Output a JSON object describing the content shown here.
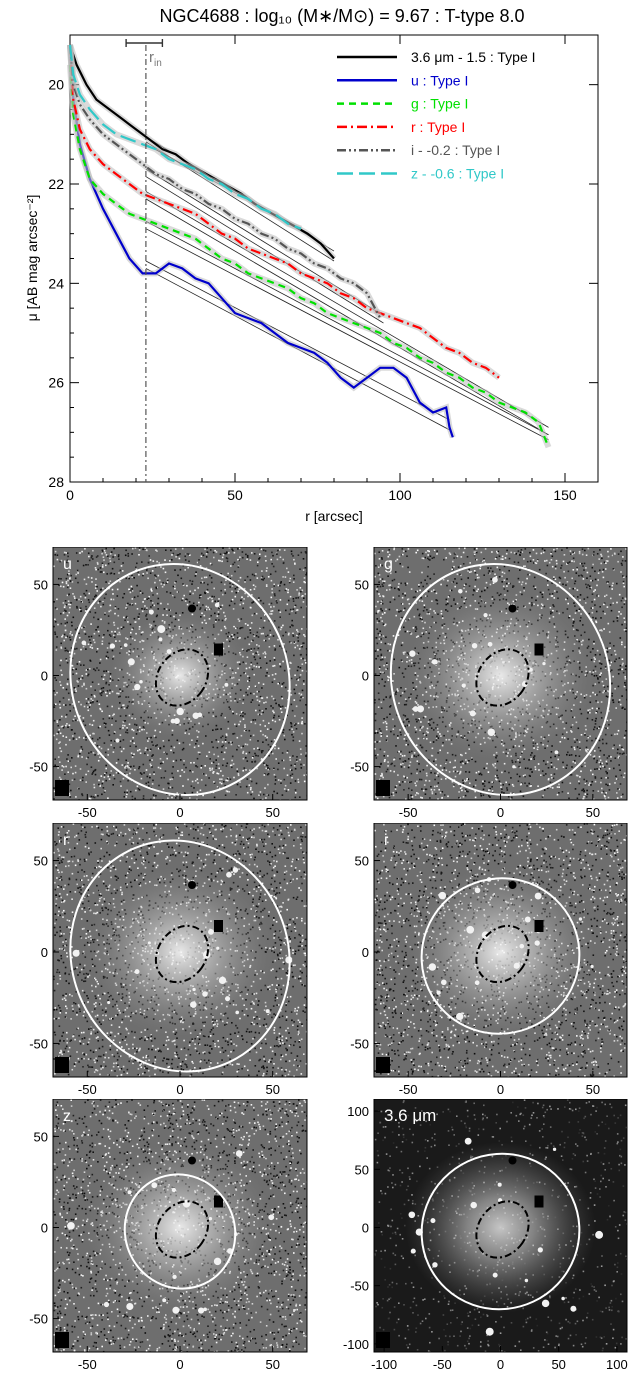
{
  "chart_data": [
    {
      "type": "line",
      "title": "NGC4688 : log₁₀ (M∗/M⊙) = 9.67 : T-type 8.0",
      "xlabel": "r [arcsec]",
      "ylabel": "μ [AB mag arcsec⁻²]",
      "xlim": [
        0,
        160
      ],
      "ylim": [
        28,
        19
      ],
      "y_inverted": true,
      "x_ticks": [
        0,
        50,
        100,
        150
      ],
      "y_ticks": [
        20,
        22,
        24,
        26,
        28
      ],
      "r_in": 23,
      "r_in_label": "r",
      "r_in_sub": "in",
      "r_in_errorbar": [
        17,
        28
      ],
      "legend_position": "top-right",
      "series": [
        {
          "name": "3.6 μm - 1.5 : Type I",
          "color": "#000000",
          "dash": "",
          "x": [
            0,
            2,
            5,
            8,
            12,
            16,
            20,
            24,
            28,
            32,
            36,
            40,
            44,
            48,
            52,
            56,
            60,
            64,
            68,
            72,
            76,
            80
          ],
          "y": [
            19.2,
            19.6,
            20.0,
            20.3,
            20.5,
            20.7,
            20.9,
            21.1,
            21.3,
            21.4,
            21.6,
            21.75,
            21.9,
            22.05,
            22.2,
            22.4,
            22.55,
            22.7,
            22.85,
            23.0,
            23.2,
            23.5
          ],
          "fits": [
            [
              [
                23,
                80
              ],
              [
                21.15,
                23.55
              ]
            ],
            [
              [
                23,
                80
              ],
              [
                21.05,
                23.35
              ]
            ]
          ]
        },
        {
          "name": "u : Type I",
          "color": "#0000cc",
          "dash": "",
          "x": [
            0,
            1,
            3,
            6,
            10,
            14,
            18,
            22,
            26,
            30,
            34,
            38,
            42,
            46,
            50,
            54,
            58,
            62,
            66,
            70,
            74,
            78,
            82,
            86,
            90,
            94,
            98,
            102,
            106,
            110,
            114,
            115,
            116
          ],
          "y": [
            19.2,
            20.3,
            21.2,
            21.9,
            22.5,
            23.0,
            23.5,
            23.8,
            23.8,
            23.6,
            23.7,
            23.9,
            24.0,
            24.3,
            24.6,
            24.7,
            24.8,
            25.0,
            25.2,
            25.3,
            25.4,
            25.6,
            25.9,
            26.1,
            25.9,
            25.7,
            25.7,
            25.9,
            26.4,
            26.6,
            26.5,
            26.9,
            27.1
          ],
          "fits": [
            [
              [
                23,
                115
              ],
              [
                23.55,
                26.75
              ]
            ],
            [
              [
                23,
                115
              ],
              [
                23.7,
                26.95
              ]
            ]
          ]
        },
        {
          "name": "g : Type I",
          "color": "#00e000",
          "dash": "7,5",
          "x": [
            0,
            1,
            3,
            6,
            10,
            14,
            18,
            22,
            26,
            30,
            34,
            38,
            42,
            46,
            50,
            54,
            58,
            62,
            66,
            70,
            74,
            78,
            82,
            86,
            90,
            94,
            98,
            102,
            106,
            110,
            114,
            118,
            122,
            126,
            130,
            134,
            138,
            142,
            145
          ],
          "y": [
            19.6,
            20.6,
            21.3,
            21.9,
            22.2,
            22.4,
            22.6,
            22.7,
            22.8,
            22.9,
            23.0,
            23.1,
            23.3,
            23.5,
            23.6,
            23.8,
            23.9,
            24.0,
            24.1,
            24.3,
            24.4,
            24.6,
            24.7,
            24.8,
            24.9,
            25.0,
            25.2,
            25.3,
            25.5,
            25.6,
            25.8,
            25.9,
            26.1,
            26.2,
            26.4,
            26.5,
            26.6,
            26.8,
            27.3
          ],
          "fits": [
            [
              [
                23,
                145
              ],
              [
                22.75,
                27.05
              ]
            ],
            [
              [
                23,
                145
              ],
              [
                22.9,
                27.15
              ]
            ]
          ]
        },
        {
          "name": "r : Type I",
          "color": "#ff0000",
          "dash": "10,4,2,4",
          "x": [
            0,
            1,
            3,
            6,
            10,
            14,
            18,
            22,
            26,
            30,
            34,
            38,
            42,
            46,
            50,
            54,
            58,
            62,
            66,
            70,
            74,
            78,
            82,
            86,
            90,
            94,
            98,
            102,
            106,
            110,
            114,
            118,
            122,
            126,
            130
          ],
          "y": [
            19.2,
            20.3,
            20.9,
            21.3,
            21.6,
            21.8,
            22.0,
            22.2,
            22.3,
            22.4,
            22.5,
            22.6,
            22.8,
            23.0,
            23.1,
            23.3,
            23.4,
            23.5,
            23.6,
            23.8,
            23.9,
            24.0,
            24.2,
            24.3,
            24.5,
            24.6,
            24.7,
            24.8,
            24.9,
            25.1,
            25.3,
            25.4,
            25.6,
            25.7,
            25.9
          ],
          "fits": [
            [
              [
                23,
                145
              ],
              [
                22.15,
                26.9
              ]
            ],
            [
              [
                23,
                145
              ],
              [
                22.3,
                27.05
              ]
            ]
          ]
        },
        {
          "name": "i - -0.2 : Type I",
          "color": "#555555",
          "dash": "9,3,2,3,2,3",
          "x": [
            0,
            1,
            3,
            6,
            10,
            14,
            18,
            22,
            26,
            30,
            34,
            38,
            42,
            46,
            50,
            54,
            58,
            62,
            66,
            70,
            74,
            78,
            82,
            86,
            90,
            94
          ],
          "y": [
            19.2,
            20.0,
            20.4,
            20.7,
            21.0,
            21.2,
            21.4,
            21.6,
            21.8,
            21.9,
            22.1,
            22.2,
            22.4,
            22.5,
            22.7,
            22.8,
            23.0,
            23.1,
            23.3,
            23.4,
            23.6,
            23.7,
            23.9,
            24.0,
            24.2,
            24.7
          ],
          "fits": [
            [
              [
                23,
                95
              ],
              [
                21.7,
                24.65
              ]
            ],
            [
              [
                23,
                95
              ],
              [
                21.85,
                24.8
              ]
            ]
          ]
        },
        {
          "name": "z - -0.6 : Type I",
          "color": "#30c8c8",
          "dash": "16,6",
          "x": [
            0,
            1,
            3,
            6,
            10,
            14,
            18,
            22,
            26,
            30,
            34,
            38,
            42,
            46,
            50,
            54,
            58,
            62,
            66,
            70
          ],
          "y": [
            19.2,
            19.8,
            20.2,
            20.5,
            20.8,
            21.0,
            21.1,
            21.2,
            21.3,
            21.5,
            21.6,
            21.7,
            21.9,
            22.0,
            22.2,
            22.3,
            22.5,
            22.6,
            22.8,
            22.9
          ],
          "fits": [
            [
              [
                23,
                70
              ],
              [
                21.2,
                22.9
              ]
            ]
          ]
        }
      ]
    },
    {
      "type": "heatmap",
      "panels": [
        {
          "label": "u",
          "x_ticks": [
            "-50",
            "0",
            "50"
          ],
          "y_ticks": [
            "50",
            "0",
            "-50"
          ],
          "outer_ellipse": "large"
        },
        {
          "label": "g",
          "x_ticks": [
            "-50",
            "0",
            "50"
          ],
          "y_ticks": [
            "50",
            "0",
            "-50"
          ],
          "outer_ellipse": "large"
        },
        {
          "label": "r",
          "x_ticks": [
            "-50",
            "0",
            "50"
          ],
          "y_ticks": [
            "50",
            "0",
            "-50"
          ],
          "outer_ellipse": "large"
        },
        {
          "label": "i",
          "x_ticks": [
            "-50",
            "0",
            "50"
          ],
          "y_ticks": [
            "50",
            "0",
            "-50"
          ],
          "outer_ellipse": "medium"
        },
        {
          "label": "z",
          "x_ticks": [
            "-50",
            "0",
            "50"
          ],
          "y_ticks": [
            "50",
            "0",
            "-50"
          ],
          "outer_ellipse": "small"
        },
        {
          "label": "3.6 μm",
          "x_ticks": [
            "-100",
            "-50",
            "0",
            "50",
            "100"
          ],
          "y_ticks": [
            "100",
            "50",
            "0",
            "-50",
            "-100"
          ],
          "outer_ellipse": "medium"
        }
      ]
    }
  ]
}
